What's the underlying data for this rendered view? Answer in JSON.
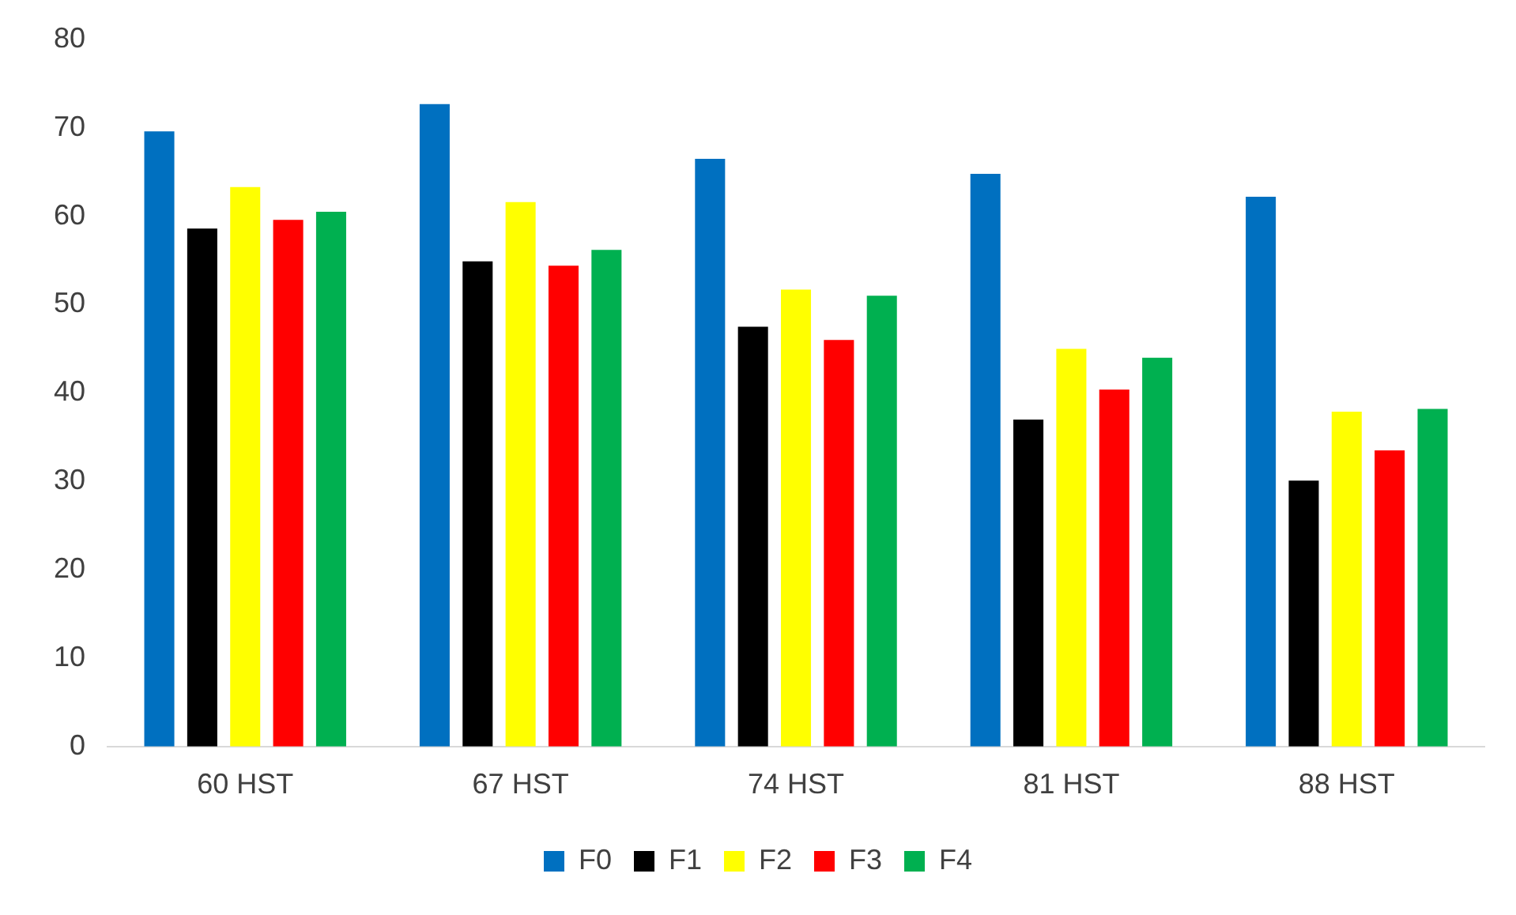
{
  "chart_data": {
    "type": "bar",
    "categories": [
      "60 HST",
      "67 HST",
      "74 HST",
      "81 HST",
      "88 HST"
    ],
    "series": [
      {
        "name": "F0",
        "color": "#0070c0",
        "values": [
          69.6,
          72.7,
          66.5,
          64.8,
          62.2
        ]
      },
      {
        "name": "F1",
        "color": "#000000",
        "values": [
          58.6,
          54.9,
          47.5,
          37.0,
          30.1
        ]
      },
      {
        "name": "F2",
        "color": "#ffff00",
        "values": [
          63.3,
          61.6,
          51.7,
          45.0,
          37.9
        ]
      },
      {
        "name": "F3",
        "color": "#ff0000",
        "values": [
          59.6,
          54.4,
          46.0,
          40.4,
          33.5
        ]
      },
      {
        "name": "F4",
        "color": "#00b050",
        "values": [
          60.5,
          56.2,
          51.0,
          44.0,
          38.2
        ]
      }
    ],
    "ylim": [
      0,
      80
    ],
    "yticks": [
      0,
      10,
      20,
      30,
      40,
      50,
      60,
      70,
      80
    ],
    "grid": false,
    "legend": "bottom"
  }
}
